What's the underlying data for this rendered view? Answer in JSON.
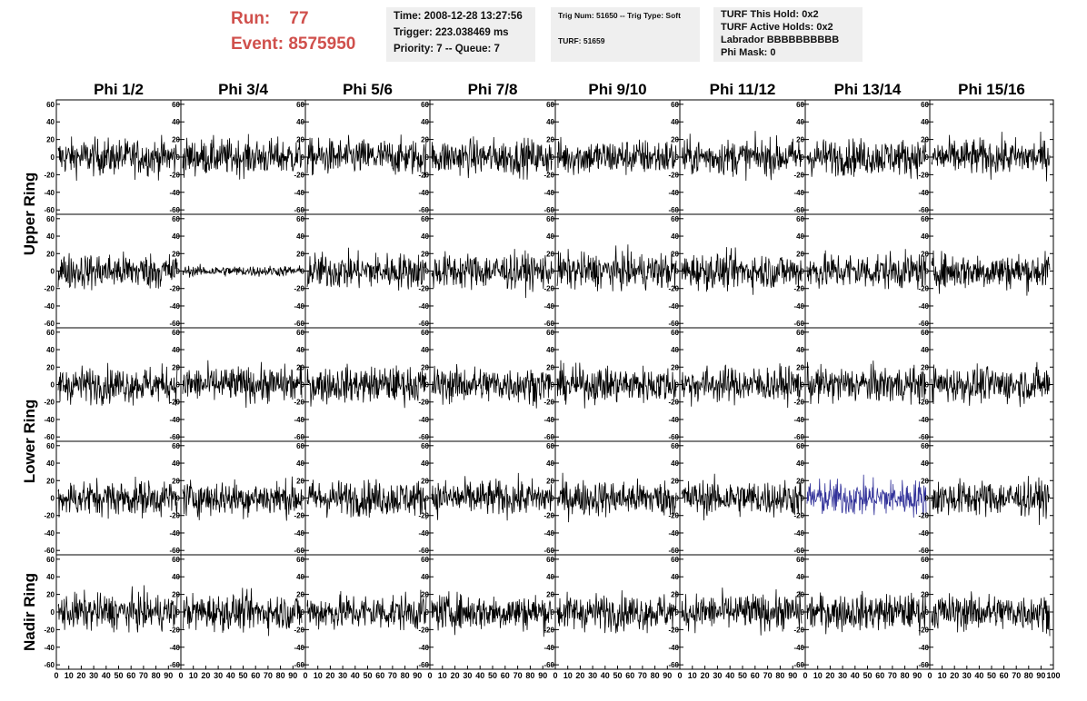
{
  "header": {
    "run_label": "Run:",
    "run_value": "77",
    "event_label": "Event:",
    "event_value": "8575950"
  },
  "info_panels": {
    "time": {
      "lines": [
        "Time: 2008-12-28 13:27:56",
        "Trigger: 223.038469 ms",
        "Priority: 7 -- Queue: 7"
      ]
    },
    "trig": {
      "lines": [
        "Trig Num: 51650 -- Trig Type: Soft",
        "TURF: 51659"
      ]
    },
    "turf": {
      "lines": [
        "TURF This Hold: 0x2",
        "TURF Active Holds: 0x2",
        "Labrador BBBBBBBBBB",
        "Phi Mask: 0"
      ]
    }
  },
  "columns": [
    "Phi 1/2",
    "Phi 3/4",
    "Phi 5/6",
    "Phi 7/8",
    "Phi 9/10",
    "Phi 11/12",
    "Phi 13/14",
    "Phi 15/16"
  ],
  "ring_labels": [
    "Upper Ring",
    "Lower Ring",
    "Nadir Ring"
  ],
  "y_ticks": [
    "60",
    "40",
    "20",
    "0",
    "-20",
    "-40",
    "-60"
  ],
  "x_ticks": [
    "0",
    "10",
    "20",
    "30",
    "40",
    "50",
    "60",
    "70",
    "80",
    "90",
    "100"
  ],
  "chart_data": {
    "type": "line",
    "rows": 5,
    "cols": 8,
    "xlim": [
      0,
      100
    ],
    "ylim": [
      -65,
      65
    ],
    "trace_color": "#000000",
    "highlight_color": "#33339a",
    "highlight_panel": {
      "row": 3,
      "col": 6
    },
    "low_amplitude_panel": {
      "row": 1,
      "col": 1
    }
  }
}
